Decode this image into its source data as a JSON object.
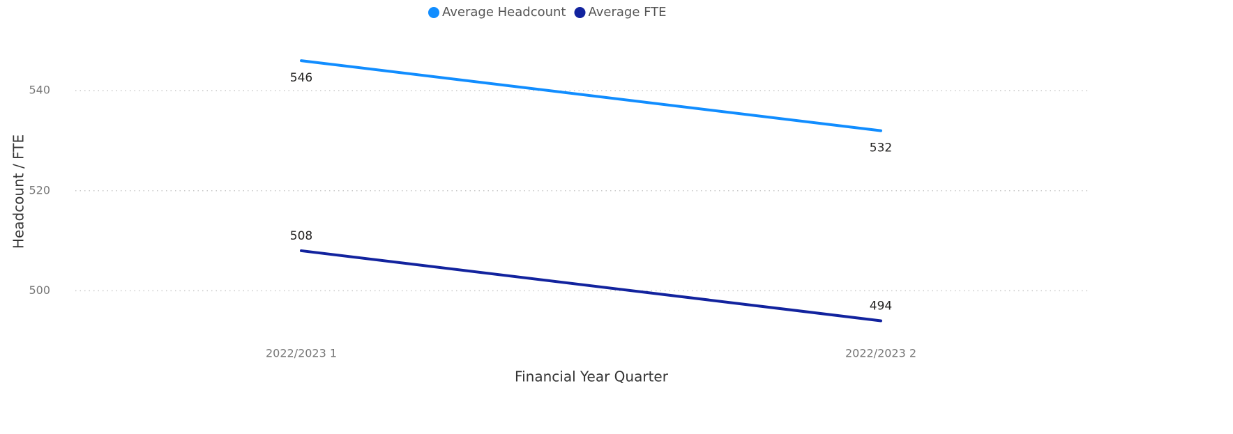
{
  "chart_data": {
    "type": "line",
    "x_label": "Financial Year Quarter",
    "y_label": "Headcount / FTE",
    "categories": [
      "2022/2023 1",
      "2022/2023 2"
    ],
    "series": [
      {
        "name": "Average Headcount",
        "color": "#118dff",
        "values": [
          546,
          532
        ]
      },
      {
        "name": "Average FTE",
        "color": "#12239e",
        "values": [
          508,
          494
        ]
      }
    ],
    "ylim": [
      491,
      552
    ],
    "yticks": [
      500,
      520,
      540
    ],
    "grid": true,
    "legend": "top"
  }
}
